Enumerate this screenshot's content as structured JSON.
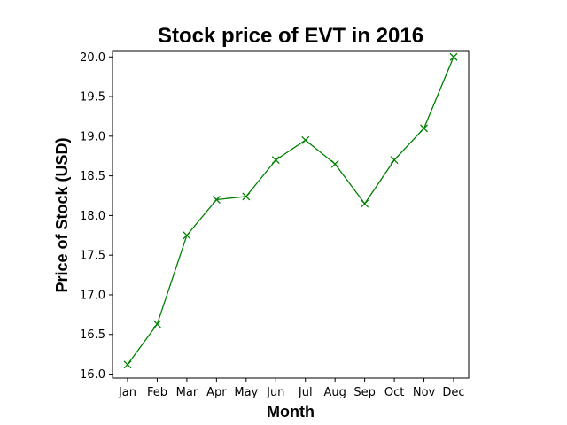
{
  "chart_data": {
    "type": "line",
    "title": "Stock price of EVT in 2016",
    "xlabel": "Month",
    "ylabel": "Price of Stock (USD)",
    "categories": [
      "Jan",
      "Feb",
      "Mar",
      "Apr",
      "May",
      "Jun",
      "Jul",
      "Aug",
      "Sep",
      "Oct",
      "Nov",
      "Dec"
    ],
    "series": [
      {
        "values": [
          16.12,
          16.63,
          17.75,
          18.2,
          18.24,
          18.7,
          18.95,
          18.65,
          18.15,
          18.7,
          19.1,
          20.0
        ],
        "color": "#008000",
        "marker": "x"
      }
    ],
    "ylim": [
      15.95,
      20.07
    ],
    "yticks": [
      16.0,
      16.5,
      17.0,
      17.5,
      18.0,
      18.5,
      19.0,
      19.5,
      20.0
    ],
    "ytick_labels": [
      "16.0",
      "16.5",
      "17.0",
      "17.5",
      "18.0",
      "18.5",
      "19.0",
      "19.5",
      "20.0"
    ],
    "grid": false,
    "legend": "none"
  }
}
